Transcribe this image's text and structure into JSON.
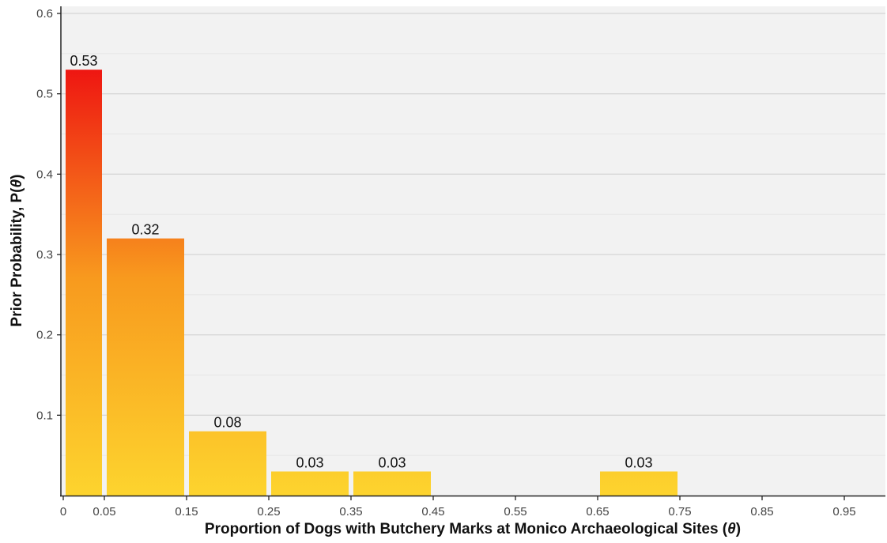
{
  "chart_data": {
    "type": "bar",
    "title": "",
    "xlabel_main": "Proportion of Dogs with Butchery Marks at Monico Archaeological Sites (",
    "xlabel_symbol": "θ",
    "xlabel_close": ")",
    "ylabel_main": "Prior Probability, P(",
    "ylabel_symbol": "θ",
    "ylabel_close": ")",
    "xlim": [
      0,
      1
    ],
    "ylim": [
      0,
      0.6
    ],
    "x_ticks": [
      0,
      0.05,
      0.15,
      0.25,
      0.35,
      0.45,
      0.55,
      0.65,
      0.75,
      0.85,
      0.95
    ],
    "x_tick_labels": [
      "0",
      "0.05",
      "0.15",
      "0.25",
      "0.35",
      "0.45",
      "0.55",
      "0.65",
      "0.75",
      "0.85",
      "0.95"
    ],
    "y_ticks": [
      0.1,
      0.2,
      0.3,
      0.4,
      0.5,
      0.6
    ],
    "y_tick_labels": [
      "0.1",
      "0.2",
      "0.3",
      "0.4",
      "0.5",
      "0.6"
    ],
    "y_minor_gridlines": [
      0.05,
      0.15,
      0.25,
      0.35,
      0.45,
      0.55
    ],
    "grid": true,
    "bars": [
      {
        "x0": 0.0,
        "x1": 0.05,
        "value": 0.53,
        "label": "0.53"
      },
      {
        "x0": 0.05,
        "x1": 0.15,
        "value": 0.32,
        "label": "0.32"
      },
      {
        "x0": 0.15,
        "x1": 0.25,
        "value": 0.08,
        "label": "0.08"
      },
      {
        "x0": 0.25,
        "x1": 0.35,
        "value": 0.03,
        "label": "0.03"
      },
      {
        "x0": 0.35,
        "x1": 0.45,
        "value": 0.03,
        "label": "0.03"
      },
      {
        "x0": 0.65,
        "x1": 0.75,
        "value": 0.03,
        "label": "0.03"
      }
    ],
    "colors": {
      "low": "#fdd42e",
      "high": "#ee1111",
      "panel_background": "#f2f2f2",
      "gridline": "#d6d6d6",
      "axis": "#222222"
    }
  }
}
